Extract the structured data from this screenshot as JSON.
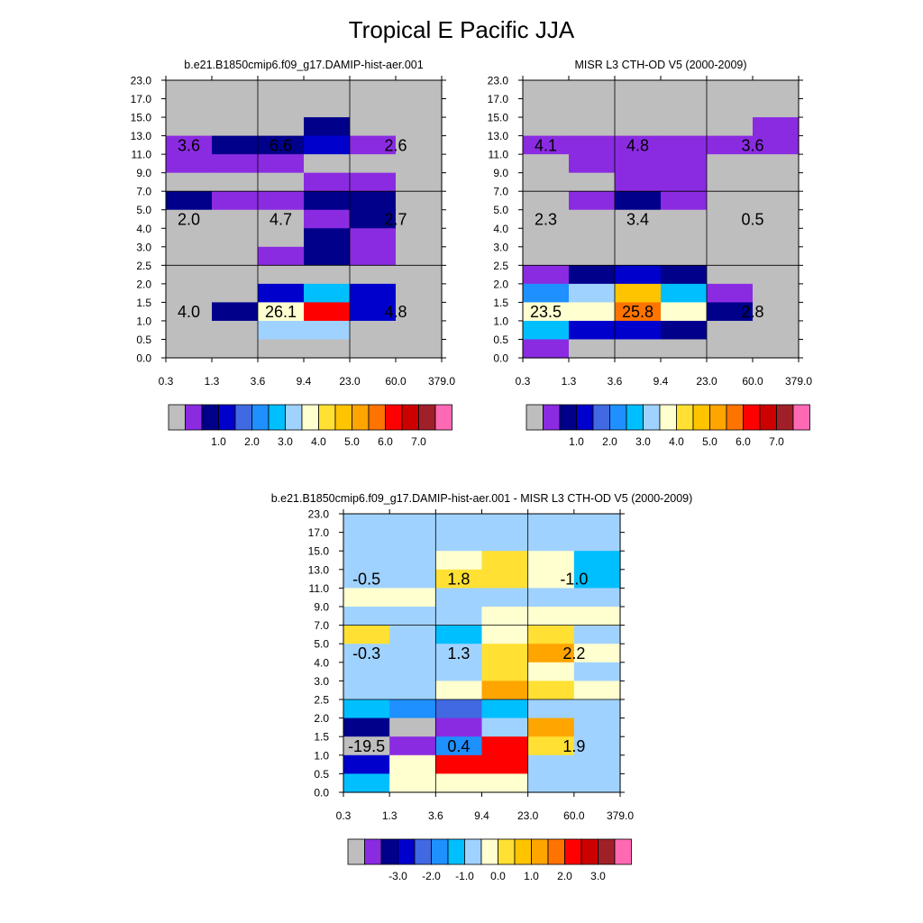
{
  "page_title": "Tropical E Pacific JJA",
  "x_ticks": [
    "0.3",
    "1.3",
    "3.6",
    "9.4",
    "23.0",
    "60.0",
    "379.0"
  ],
  "y_ticks": [
    "0.0",
    "0.5",
    "1.0",
    "1.5",
    "2.0",
    "2.5",
    "3.0",
    "4.0",
    "5.0",
    "7.0",
    "9.0",
    "11.0",
    "13.0",
    "15.0",
    "17.0",
    "23.0"
  ],
  "palette": [
    "#bebebe",
    "#8a2be2",
    "#00008b",
    "#0000cd",
    "#4169e1",
    "#1e90ff",
    "#00bfff",
    "#a0d2ff",
    "#ffffd0",
    "#ffe033",
    "#ffc400",
    "#ffa500",
    "#ff7400",
    "#ff0000",
    "#cd0000",
    "#a0202a",
    "#ff69b4"
  ],
  "chart_data": [
    {
      "type": "heatmap",
      "title": "b.e21.B1850cmip6.f09_g17.DAMIP-hist-aer.001",
      "colorbar_labels": [
        "1.0",
        "2.0",
        "3.0",
        "4.0",
        "5.0",
        "6.0",
        "7.0"
      ],
      "colorbar_label_edges": [
        3,
        5,
        7,
        9,
        11,
        13,
        15
      ],
      "rows_top_to_bottom": [
        [
          0,
          0,
          0,
          0,
          0,
          0
        ],
        [
          0,
          0,
          0,
          0,
          0,
          0
        ],
        [
          0,
          0,
          0,
          2,
          0,
          0
        ],
        [
          1,
          2,
          2,
          3,
          1,
          0
        ],
        [
          1,
          1,
          1,
          0,
          0,
          0
        ],
        [
          0,
          0,
          0,
          1,
          1,
          0
        ],
        [
          2,
          1,
          1,
          2,
          2,
          0
        ],
        [
          0,
          0,
          0,
          1,
          2,
          0
        ],
        [
          0,
          0,
          0,
          2,
          1,
          0
        ],
        [
          0,
          0,
          1,
          2,
          1,
          0
        ],
        [
          0,
          0,
          0,
          0,
          0,
          0
        ],
        [
          0,
          0,
          3,
          6,
          3,
          0
        ],
        [
          0,
          2,
          8,
          13,
          3,
          0
        ],
        [
          0,
          0,
          7,
          7,
          0,
          0
        ],
        [
          0,
          0,
          0,
          0,
          0,
          0
        ]
      ],
      "annotations": [
        {
          "text": "3.6",
          "col": 0.5,
          "row": 3
        },
        {
          "text": "6.6",
          "col": 2.5,
          "row": 3
        },
        {
          "text": "2.6",
          "col": 5.0,
          "row": 3
        },
        {
          "text": "2.0",
          "col": 0.5,
          "row": 7
        },
        {
          "text": "4.7",
          "col": 2.5,
          "row": 7
        },
        {
          "text": "2.7",
          "col": 5.0,
          "row": 7
        },
        {
          "text": "4.0",
          "col": 0.5,
          "row": 12
        },
        {
          "text": "26.1",
          "col": 2.5,
          "row": 12
        },
        {
          "text": "4.8",
          "col": 5.0,
          "row": 12
        }
      ]
    },
    {
      "type": "heatmap",
      "title": "MISR L3 CTH-OD V5 (2000-2009)",
      "colorbar_labels": [
        "1.0",
        "2.0",
        "3.0",
        "4.0",
        "5.0",
        "6.0",
        "7.0"
      ],
      "colorbar_label_edges": [
        3,
        5,
        7,
        9,
        11,
        13,
        15
      ],
      "rows_top_to_bottom": [
        [
          0,
          0,
          0,
          0,
          0,
          0
        ],
        [
          0,
          0,
          0,
          0,
          0,
          0
        ],
        [
          0,
          0,
          0,
          0,
          0,
          1
        ],
        [
          1,
          1,
          1,
          1,
          1,
          1
        ],
        [
          0,
          1,
          1,
          1,
          0,
          0
        ],
        [
          0,
          0,
          1,
          1,
          0,
          0
        ],
        [
          0,
          1,
          2,
          1,
          0,
          0
        ],
        [
          0,
          0,
          0,
          0,
          0,
          0
        ],
        [
          0,
          0,
          0,
          0,
          0,
          0
        ],
        [
          0,
          0,
          0,
          0,
          0,
          0
        ],
        [
          1,
          2,
          3,
          2,
          0,
          0
        ],
        [
          5,
          7,
          10,
          6,
          1,
          0
        ],
        [
          8,
          8,
          12,
          8,
          2,
          0
        ],
        [
          6,
          3,
          3,
          2,
          0,
          0
        ],
        [
          1,
          0,
          0,
          0,
          0,
          0
        ]
      ],
      "annotations": [
        {
          "text": "4.1",
          "col": 0.5,
          "row": 3
        },
        {
          "text": "4.8",
          "col": 2.5,
          "row": 3
        },
        {
          "text": "3.6",
          "col": 5.0,
          "row": 3
        },
        {
          "text": "2.3",
          "col": 0.5,
          "row": 7
        },
        {
          "text": "3.4",
          "col": 2.5,
          "row": 7
        },
        {
          "text": "0.5",
          "col": 5.0,
          "row": 7
        },
        {
          "text": "23.5",
          "col": 0.5,
          "row": 12
        },
        {
          "text": "25.8",
          "col": 2.5,
          "row": 12
        },
        {
          "text": "2.8",
          "col": 5.0,
          "row": 12
        }
      ]
    },
    {
      "type": "heatmap",
      "title": "b.e21.B1850cmip6.f09_g17.DAMIP-hist-aer.001 - MISR L3 CTH-OD V5 (2000-2009)",
      "colorbar_labels": [
        "-3.0",
        "-2.0",
        "-1.0",
        "0.0",
        "1.0",
        "2.0",
        "3.0"
      ],
      "colorbar_label_edges": [
        3,
        5,
        7,
        9,
        11,
        13,
        15
      ],
      "rows_top_to_bottom": [
        [
          7,
          7,
          7,
          7,
          7,
          7
        ],
        [
          7,
          7,
          7,
          7,
          7,
          7
        ],
        [
          7,
          7,
          8,
          9,
          8,
          6
        ],
        [
          7,
          7,
          9,
          9,
          8,
          6
        ],
        [
          8,
          8,
          7,
          7,
          7,
          7
        ],
        [
          7,
          7,
          7,
          8,
          8,
          8
        ],
        [
          9,
          7,
          6,
          8,
          9,
          7
        ],
        [
          7,
          7,
          7,
          9,
          11,
          8
        ],
        [
          7,
          7,
          7,
          9,
          8,
          7
        ],
        [
          7,
          7,
          8,
          11,
          9,
          8
        ],
        [
          6,
          5,
          4,
          6,
          7,
          7
        ],
        [
          2,
          0,
          1,
          7,
          11,
          7
        ],
        [
          0,
          1,
          5,
          13,
          9,
          7
        ],
        [
          3,
          8,
          13,
          13,
          7,
          7
        ],
        [
          6,
          8,
          8,
          8,
          7,
          7
        ]
      ],
      "annotations": [
        {
          "text": "-0.5",
          "col": 0.5,
          "row": 3
        },
        {
          "text": "1.8",
          "col": 2.5,
          "row": 3
        },
        {
          "text": "-1.0",
          "col": 5.0,
          "row": 3
        },
        {
          "text": "-0.3",
          "col": 0.5,
          "row": 7
        },
        {
          "text": "1.3",
          "col": 2.5,
          "row": 7
        },
        {
          "text": "2.2",
          "col": 5.0,
          "row": 7
        },
        {
          "text": "-19.5",
          "col": 0.5,
          "row": 12
        },
        {
          "text": "0.4",
          "col": 2.5,
          "row": 12
        },
        {
          "text": "1.9",
          "col": 5.0,
          "row": 12
        }
      ]
    }
  ]
}
